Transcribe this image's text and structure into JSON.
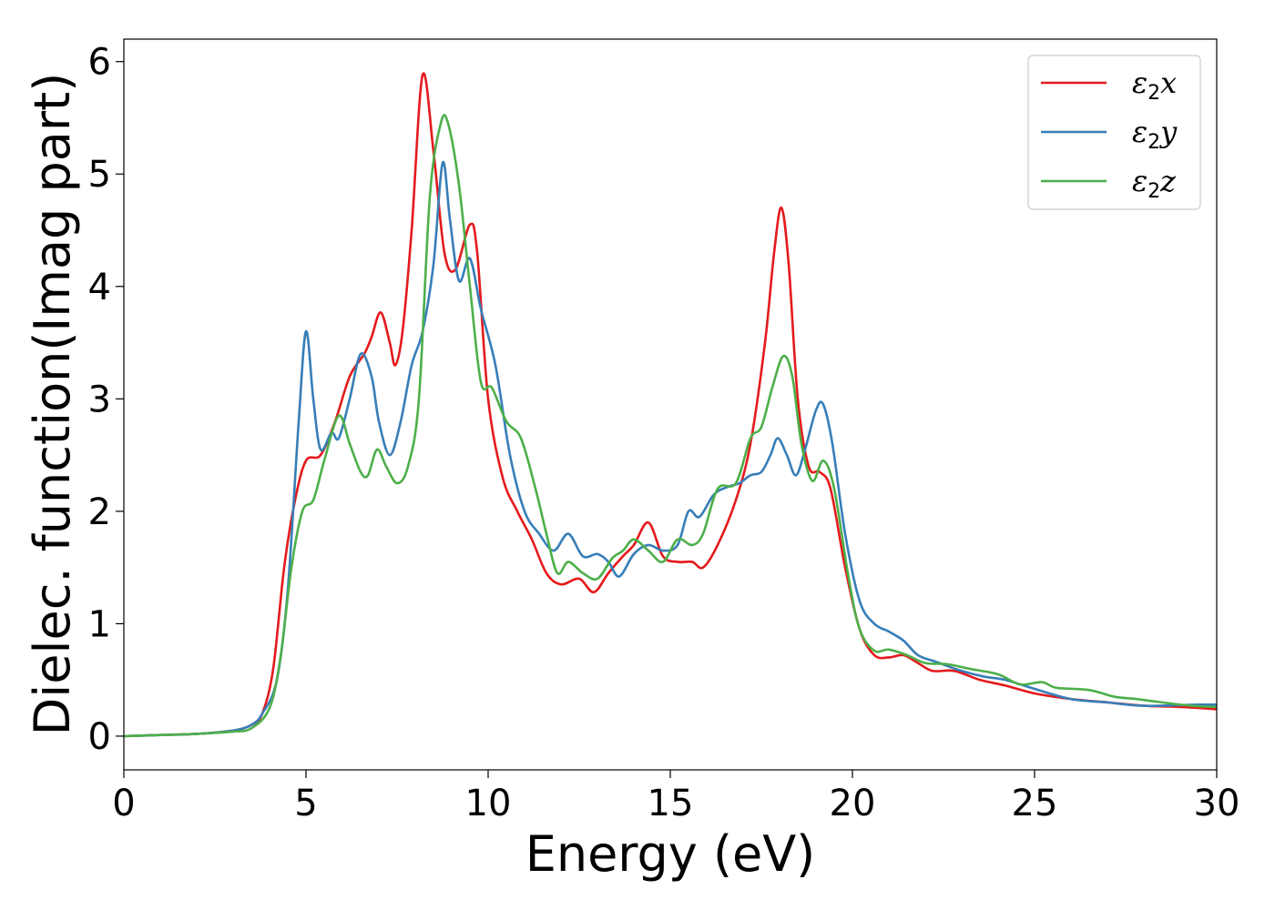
{
  "chart_data": {
    "type": "line",
    "xlabel": "Energy (eV)",
    "ylabel": "Dielec. function(Imag part)",
    "xlim": [
      0,
      30
    ],
    "ylim": [
      -0.3,
      6.2
    ],
    "xticks": [
      0,
      5,
      10,
      15,
      20,
      25,
      30
    ],
    "yticks": [
      0,
      1,
      2,
      3,
      4,
      5,
      6
    ],
    "grid": false,
    "legend_position": "top-right",
    "series": [
      {
        "name": "ε2x",
        "legend": {
          "base": "ε",
          "sub": "2",
          "tail": "x"
        },
        "color": "#e41a1c",
        "points": [
          [
            0,
            0
          ],
          [
            1,
            0.01
          ],
          [
            2,
            0.02
          ],
          [
            3,
            0.05
          ],
          [
            3.5,
            0.1
          ],
          [
            3.8,
            0.2
          ],
          [
            4.1,
            0.6
          ],
          [
            4.4,
            1.5
          ],
          [
            4.7,
            2.1
          ],
          [
            5.0,
            2.45
          ],
          [
            5.4,
            2.5
          ],
          [
            5.8,
            2.8
          ],
          [
            6.2,
            3.2
          ],
          [
            6.6,
            3.4
          ],
          [
            6.8,
            3.55
          ],
          [
            7.05,
            3.77
          ],
          [
            7.3,
            3.5
          ],
          [
            7.45,
            3.3
          ],
          [
            7.65,
            3.6
          ],
          [
            7.9,
            4.5
          ],
          [
            8.2,
            5.88
          ],
          [
            8.5,
            5.2
          ],
          [
            8.8,
            4.3
          ],
          [
            9.1,
            4.15
          ],
          [
            9.5,
            4.55
          ],
          [
            9.7,
            4.3
          ],
          [
            10.0,
            3.0
          ],
          [
            10.4,
            2.3
          ],
          [
            10.8,
            2.0
          ],
          [
            11.2,
            1.75
          ],
          [
            11.6,
            1.45
          ],
          [
            12.0,
            1.35
          ],
          [
            12.5,
            1.4
          ],
          [
            12.9,
            1.28
          ],
          [
            13.3,
            1.45
          ],
          [
            13.7,
            1.6
          ],
          [
            14.0,
            1.7
          ],
          [
            14.4,
            1.9
          ],
          [
            14.8,
            1.6
          ],
          [
            15.2,
            1.55
          ],
          [
            15.6,
            1.55
          ],
          [
            15.9,
            1.5
          ],
          [
            16.3,
            1.7
          ],
          [
            16.8,
            2.1
          ],
          [
            17.2,
            2.6
          ],
          [
            17.6,
            3.5
          ],
          [
            17.85,
            4.3
          ],
          [
            18.05,
            4.7
          ],
          [
            18.25,
            4.2
          ],
          [
            18.5,
            3.0
          ],
          [
            18.8,
            2.4
          ],
          [
            19.1,
            2.35
          ],
          [
            19.4,
            2.2
          ],
          [
            19.8,
            1.5
          ],
          [
            20.2,
            0.95
          ],
          [
            20.6,
            0.72
          ],
          [
            21.0,
            0.7
          ],
          [
            21.4,
            0.72
          ],
          [
            21.8,
            0.65
          ],
          [
            22.2,
            0.58
          ],
          [
            22.8,
            0.58
          ],
          [
            23.5,
            0.5
          ],
          [
            24.2,
            0.45
          ],
          [
            25.0,
            0.38
          ],
          [
            26.0,
            0.33
          ],
          [
            27.0,
            0.3
          ],
          [
            28.0,
            0.27
          ],
          [
            29.0,
            0.26
          ],
          [
            30.0,
            0.24
          ]
        ]
      },
      {
        "name": "ε2y",
        "legend": {
          "base": "ε",
          "sub": "2",
          "tail": "y"
        },
        "color": "#377eb8",
        "points": [
          [
            0,
            0
          ],
          [
            1,
            0.01
          ],
          [
            2,
            0.02
          ],
          [
            3,
            0.05
          ],
          [
            3.5,
            0.1
          ],
          [
            3.8,
            0.2
          ],
          [
            4.2,
            0.5
          ],
          [
            4.5,
            1.3
          ],
          [
            4.8,
            2.8
          ],
          [
            5.0,
            3.6
          ],
          [
            5.2,
            3.0
          ],
          [
            5.4,
            2.55
          ],
          [
            5.7,
            2.7
          ],
          [
            5.9,
            2.65
          ],
          [
            6.2,
            3.0
          ],
          [
            6.5,
            3.4
          ],
          [
            6.8,
            3.2
          ],
          [
            7.0,
            2.8
          ],
          [
            7.3,
            2.5
          ],
          [
            7.6,
            2.8
          ],
          [
            7.9,
            3.3
          ],
          [
            8.2,
            3.6
          ],
          [
            8.5,
            4.2
          ],
          [
            8.75,
            5.1
          ],
          [
            8.95,
            4.6
          ],
          [
            9.2,
            4.05
          ],
          [
            9.5,
            4.25
          ],
          [
            9.8,
            3.8
          ],
          [
            10.2,
            3.3
          ],
          [
            10.6,
            2.5
          ],
          [
            11.0,
            2.0
          ],
          [
            11.4,
            1.8
          ],
          [
            11.8,
            1.65
          ],
          [
            12.2,
            1.8
          ],
          [
            12.6,
            1.6
          ],
          [
            13.0,
            1.62
          ],
          [
            13.3,
            1.55
          ],
          [
            13.6,
            1.42
          ],
          [
            14.0,
            1.62
          ],
          [
            14.4,
            1.7
          ],
          [
            14.8,
            1.65
          ],
          [
            15.2,
            1.7
          ],
          [
            15.5,
            2.0
          ],
          [
            15.8,
            1.95
          ],
          [
            16.2,
            2.15
          ],
          [
            16.6,
            2.22
          ],
          [
            16.9,
            2.25
          ],
          [
            17.2,
            2.32
          ],
          [
            17.5,
            2.35
          ],
          [
            17.75,
            2.5
          ],
          [
            17.95,
            2.65
          ],
          [
            18.2,
            2.5
          ],
          [
            18.45,
            2.32
          ],
          [
            18.7,
            2.55
          ],
          [
            19.0,
            2.9
          ],
          [
            19.2,
            2.95
          ],
          [
            19.45,
            2.6
          ],
          [
            19.8,
            1.8
          ],
          [
            20.2,
            1.2
          ],
          [
            20.6,
            1.0
          ],
          [
            21.0,
            0.93
          ],
          [
            21.4,
            0.85
          ],
          [
            21.8,
            0.72
          ],
          [
            22.3,
            0.66
          ],
          [
            23.0,
            0.58
          ],
          [
            23.6,
            0.53
          ],
          [
            24.2,
            0.5
          ],
          [
            25.0,
            0.42
          ],
          [
            26.0,
            0.33
          ],
          [
            27.0,
            0.3
          ],
          [
            28.0,
            0.27
          ],
          [
            29.5,
            0.28
          ],
          [
            30.0,
            0.28
          ]
        ]
      },
      {
        "name": "ε2z",
        "legend": {
          "base": "ε",
          "sub": "2",
          "tail": "z"
        },
        "color": "#4daf4a",
        "points": [
          [
            0,
            0
          ],
          [
            1,
            0.01
          ],
          [
            2,
            0.02
          ],
          [
            3,
            0.04
          ],
          [
            3.5,
            0.07
          ],
          [
            4.0,
            0.25
          ],
          [
            4.3,
            0.7
          ],
          [
            4.6,
            1.5
          ],
          [
            4.9,
            2.0
          ],
          [
            5.2,
            2.1
          ],
          [
            5.5,
            2.45
          ],
          [
            5.9,
            2.85
          ],
          [
            6.2,
            2.6
          ],
          [
            6.5,
            2.35
          ],
          [
            6.7,
            2.32
          ],
          [
            6.95,
            2.55
          ],
          [
            7.2,
            2.4
          ],
          [
            7.5,
            2.25
          ],
          [
            7.8,
            2.4
          ],
          [
            8.1,
            3.0
          ],
          [
            8.4,
            4.8
          ],
          [
            8.7,
            5.45
          ],
          [
            8.9,
            5.45
          ],
          [
            9.2,
            4.9
          ],
          [
            9.5,
            4.0
          ],
          [
            9.8,
            3.15
          ],
          [
            10.1,
            3.1
          ],
          [
            10.5,
            2.8
          ],
          [
            10.9,
            2.65
          ],
          [
            11.3,
            2.2
          ],
          [
            11.6,
            1.8
          ],
          [
            11.9,
            1.45
          ],
          [
            12.2,
            1.55
          ],
          [
            12.6,
            1.45
          ],
          [
            13.0,
            1.4
          ],
          [
            13.4,
            1.58
          ],
          [
            13.7,
            1.65
          ],
          [
            14.0,
            1.75
          ],
          [
            14.4,
            1.65
          ],
          [
            14.8,
            1.55
          ],
          [
            15.2,
            1.75
          ],
          [
            15.6,
            1.7
          ],
          [
            15.9,
            1.8
          ],
          [
            16.3,
            2.2
          ],
          [
            16.8,
            2.25
          ],
          [
            17.2,
            2.65
          ],
          [
            17.5,
            2.75
          ],
          [
            17.8,
            3.1
          ],
          [
            18.1,
            3.38
          ],
          [
            18.35,
            3.2
          ],
          [
            18.6,
            2.6
          ],
          [
            18.9,
            2.27
          ],
          [
            19.2,
            2.45
          ],
          [
            19.5,
            2.2
          ],
          [
            19.9,
            1.4
          ],
          [
            20.2,
            0.95
          ],
          [
            20.6,
            0.76
          ],
          [
            21.0,
            0.77
          ],
          [
            21.5,
            0.72
          ],
          [
            22.0,
            0.65
          ],
          [
            22.6,
            0.64
          ],
          [
            23.2,
            0.6
          ],
          [
            24.0,
            0.55
          ],
          [
            24.6,
            0.46
          ],
          [
            25.2,
            0.48
          ],
          [
            25.6,
            0.43
          ],
          [
            26.5,
            0.41
          ],
          [
            27.2,
            0.35
          ],
          [
            27.8,
            0.33
          ],
          [
            28.5,
            0.3
          ],
          [
            29.3,
            0.27
          ],
          [
            30.0,
            0.26
          ]
        ]
      }
    ]
  }
}
